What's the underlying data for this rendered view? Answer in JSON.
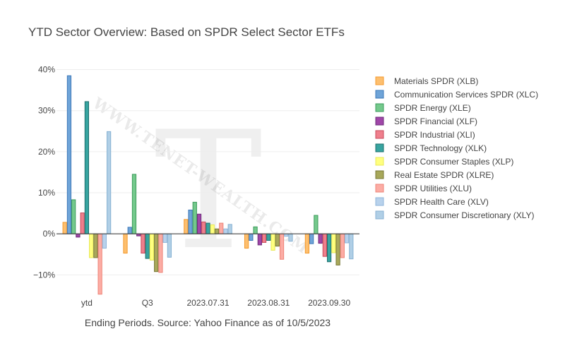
{
  "chart_data": {
    "type": "bar",
    "title": "YTD Sector Overview: Based on SPDR Select Sector ETFs",
    "xlabel": "Ending Periods. Source: Yahoo Finance as of 10/5/2023",
    "ylabel": "",
    "categories": [
      "ytd",
      "Q3",
      "2023.07.31",
      "2023.08.31",
      "2023.09.30"
    ],
    "ylim": [
      -0.175,
      0.425
    ],
    "yticks": [
      -0.1,
      0,
      0.1,
      0.2,
      0.3,
      0.4
    ],
    "ytick_labels": [
      "−10%",
      "0%",
      "10%",
      "20%",
      "30%",
      "40%"
    ],
    "grid": true,
    "legend_position": "right",
    "watermark": {
      "letter": "T",
      "text": "WWW.TENET-WEALTH.COM"
    },
    "series": [
      {
        "name": "Materials SPDR (XLB)",
        "color": "#fdbf6f",
        "edge": "#f49a2c",
        "values": [
          0.028,
          -0.047,
          0.035,
          -0.035,
          -0.047
        ]
      },
      {
        "name": "Communication Services SPDR (XLC)",
        "color": "#6fa4d8",
        "edge": "#3d78b8",
        "values": [
          0.385,
          0.016,
          0.058,
          -0.016,
          -0.024
        ]
      },
      {
        "name": "SPDR Energy (XLE)",
        "color": "#74c98c",
        "edge": "#3d9b5c",
        "values": [
          0.083,
          0.145,
          0.077,
          0.017,
          0.045
        ]
      },
      {
        "name": "SPDR Financial (XLF)",
        "color": "#a046a8",
        "edge": "#6d2c7a",
        "values": [
          -0.008,
          -0.005,
          0.048,
          -0.027,
          -0.023
        ]
      },
      {
        "name": "SPDR Industrial (XLI)",
        "color": "#ef7f8c",
        "edge": "#c74a5b",
        "values": [
          0.051,
          -0.047,
          0.029,
          -0.021,
          -0.055
        ]
      },
      {
        "name": "SPDR Technology (XLK)",
        "color": "#37a4a0",
        "edge": "#1e6f6d",
        "values": [
          0.322,
          -0.06,
          0.026,
          -0.016,
          -0.068
        ]
      },
      {
        "name": "SPDR Consumer Staples (XLP)",
        "color": "#ffff7f",
        "edge": "#e8e85a",
        "values": [
          -0.058,
          -0.064,
          0.022,
          -0.04,
          -0.046
        ]
      },
      {
        "name": "Real Estate SPDR (XLRE)",
        "color": "#a8a85a",
        "edge": "#787838",
        "values": [
          -0.058,
          -0.092,
          0.012,
          -0.03,
          -0.076
        ]
      },
      {
        "name": "SPDR Utilities (XLU)",
        "color": "#fcaca4",
        "edge": "#ee8478",
        "values": [
          -0.147,
          -0.094,
          0.026,
          -0.062,
          -0.058
        ]
      },
      {
        "name": "SPDR Health Care (XLV)",
        "color": "#b8d2ec",
        "edge": "#8fb4da",
        "values": [
          -0.035,
          -0.021,
          0.012,
          -0.006,
          -0.022
        ]
      },
      {
        "name": "SPDR Consumer Discretionary (XLY)",
        "color": "#b0cfe6",
        "edge": "#88b2d3",
        "values": [
          0.249,
          -0.057,
          0.023,
          -0.018,
          -0.061
        ]
      }
    ]
  }
}
